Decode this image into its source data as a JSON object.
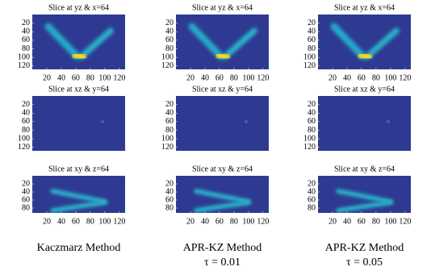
{
  "figure": {
    "panels": [
      {
        "title": "Slice at yz & x=64",
        "xlim": [
          0,
          128
        ],
        "ylim": [
          0,
          128
        ],
        "xticks": [
          20,
          40,
          60,
          80,
          100,
          120
        ],
        "yticks": [
          20,
          40,
          60,
          80,
          100,
          120
        ]
      },
      {
        "title": "Slice at yz & x=64",
        "xlim": [
          0,
          128
        ],
        "ylim": [
          0,
          128
        ],
        "xticks": [
          20,
          40,
          60,
          80,
          100,
          120
        ],
        "yticks": [
          20,
          40,
          60,
          80,
          100,
          120
        ]
      },
      {
        "title": "Slice at yz & x=64",
        "xlim": [
          0,
          128
        ],
        "ylim": [
          0,
          128
        ],
        "xticks": [
          20,
          40,
          60,
          80,
          100,
          120
        ],
        "yticks": [
          20,
          40,
          60,
          80,
          100,
          120
        ]
      },
      {
        "title": "Slice at xz & y=64",
        "xlim": [
          0,
          128
        ],
        "ylim": [
          0,
          128
        ],
        "yticks": [
          20,
          40,
          60,
          80,
          100,
          120
        ]
      },
      {
        "title": "Slice at xz & y=64",
        "xlim": [
          0,
          128
        ],
        "ylim": [
          0,
          128
        ],
        "yticks": [
          20,
          40,
          60,
          80,
          100,
          120
        ]
      },
      {
        "title": "Slice at xz & y=64",
        "xlim": [
          0,
          128
        ],
        "ylim": [
          0,
          128
        ],
        "yticks": [
          20,
          40,
          60,
          80,
          100,
          120
        ]
      },
      {
        "title": "Slice at xy & z=64",
        "xlim": [
          0,
          128
        ],
        "ylim": [
          0,
          92
        ],
        "xticks": [
          20,
          40,
          60,
          80,
          100,
          120
        ],
        "yticks": [
          20,
          40,
          60,
          80
        ]
      },
      {
        "title": "Slice at xy & z=64",
        "xlim": [
          0,
          128
        ],
        "ylim": [
          0,
          92
        ],
        "xticks": [
          20,
          40,
          60,
          80,
          100,
          120
        ],
        "yticks": [
          20,
          40,
          60,
          80
        ]
      },
      {
        "title": "Slice at xy & z=64",
        "xlim": [
          0,
          128
        ],
        "ylim": [
          0,
          92
        ],
        "xticks": [
          20,
          40,
          60,
          80,
          100,
          120
        ],
        "yticks": [
          20,
          40,
          60,
          80
        ]
      }
    ],
    "captions": [
      {
        "method": "Kaczmarz Method"
      },
      {
        "method": "APR-KZ Method",
        "param": "τ = 0.01"
      },
      {
        "method": "APR-KZ Method",
        "param": "τ = 0.05"
      }
    ]
  }
}
